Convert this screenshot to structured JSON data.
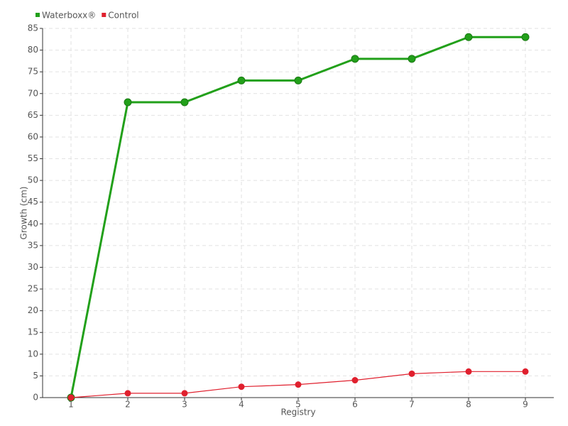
{
  "chart_data": {
    "type": "line",
    "x": [
      1,
      2,
      3,
      4,
      5,
      6,
      7,
      8,
      9
    ],
    "series": [
      {
        "name": "Waterboxx®",
        "color": "#22a01a",
        "values": [
          0,
          68,
          68,
          73,
          73,
          78,
          78,
          83,
          83
        ]
      },
      {
        "name": "Control",
        "color": "#e0202e",
        "values": [
          0,
          1,
          1,
          2.5,
          3,
          4,
          5.5,
          6,
          6
        ]
      }
    ],
    "x_label": "Registry",
    "y_label": "Growth (cm)",
    "xlim": [
      0.5,
      9.5
    ],
    "xticks": [
      1,
      2,
      3,
      4,
      5,
      6,
      7,
      8,
      9
    ],
    "ylim": [
      0,
      85
    ],
    "yticks": [
      0,
      5,
      10,
      15,
      20,
      25,
      30,
      35,
      40,
      45,
      50,
      55,
      60,
      65,
      70,
      75,
      80,
      85
    ],
    "grid": true,
    "legend": "top-left"
  }
}
